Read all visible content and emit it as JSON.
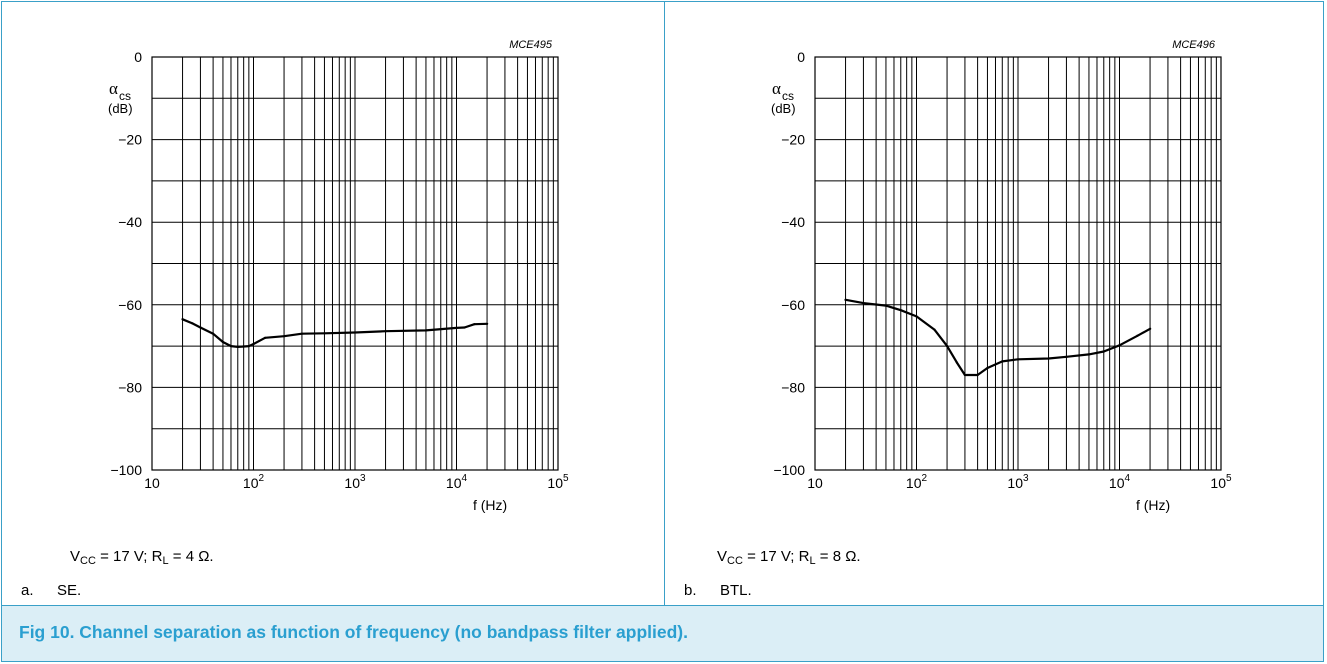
{
  "caption": "Fig 10.  Channel separation as function of frequency (no bandpass filter applied).",
  "colors": {
    "frame": "#3aa0c8",
    "caption_bg": "#dbeef6",
    "caption_text": "#2a9fd0",
    "curve": "#000000",
    "grid": "#000000"
  },
  "chart_data": [
    {
      "type": "line",
      "title": "MCE495",
      "ylabel_symbol": "α",
      "ylabel_sub": "cs",
      "ylabel_unit": "(dB)",
      "xlabel": "f (Hz)",
      "xscale": "log",
      "xlim": [
        10,
        100000
      ],
      "ylim": [
        -100,
        0
      ],
      "grid": true,
      "yticks": [
        0,
        -20,
        -40,
        -60,
        -80,
        -100
      ],
      "ytick_labels": [
        "0",
        "−20",
        "−40",
        "−60",
        "−80",
        "−100"
      ],
      "xtick_labels": [
        {
          "base": "10",
          "exp": ""
        },
        {
          "base": "10",
          "exp": "2"
        },
        {
          "base": "10",
          "exp": "3"
        },
        {
          "base": "10",
          "exp": "4"
        },
        {
          "base": "10",
          "exp": "5"
        }
      ],
      "series": [
        {
          "x": [
            20,
            25,
            30,
            40,
            50,
            60,
            70,
            80,
            90,
            100,
            130,
            200,
            300,
            500,
            1000,
            2000,
            5000,
            10000,
            12000,
            15000,
            20000
          ],
          "y": [
            -63.5,
            -64.5,
            -65.5,
            -67,
            -69,
            -70,
            -70.2,
            -70.1,
            -70,
            -69.5,
            -68,
            -67.6,
            -67,
            -66.9,
            -66.7,
            -66.4,
            -66.2,
            -65.6,
            -65.5,
            -64.7,
            -64.6
          ]
        }
      ],
      "condition": {
        "v_sym": "V",
        "v_sub": "CC",
        "v_val": " = 17 V; ",
        "r_sym": "R",
        "r_sub": "L",
        "r_val": " = 4 Ω."
      },
      "sublabel": {
        "tag": "a.",
        "text": "SE."
      }
    },
    {
      "type": "line",
      "title": "MCE496",
      "ylabel_symbol": "α",
      "ylabel_sub": "cs",
      "ylabel_unit": "(dB)",
      "xlabel": "f (Hz)",
      "xscale": "log",
      "xlim": [
        10,
        100000
      ],
      "ylim": [
        -100,
        0
      ],
      "grid": true,
      "yticks": [
        0,
        -20,
        -40,
        -60,
        -80,
        -100
      ],
      "ytick_labels": [
        "0",
        "−20",
        "−40",
        "−60",
        "−80",
        "−100"
      ],
      "xtick_labels": [
        {
          "base": "10",
          "exp": ""
        },
        {
          "base": "10",
          "exp": "2"
        },
        {
          "base": "10",
          "exp": "3"
        },
        {
          "base": "10",
          "exp": "4"
        },
        {
          "base": "10",
          "exp": "5"
        }
      ],
      "series": [
        {
          "x": [
            20,
            30,
            50,
            70,
            100,
            150,
            200,
            250,
            300,
            400,
            500,
            700,
            1000,
            2000,
            3000,
            5000,
            7000,
            10000,
            15000,
            20000
          ],
          "y": [
            -58.8,
            -59.6,
            -60.2,
            -61.3,
            -62.8,
            -66,
            -70,
            -74,
            -77,
            -77,
            -75.3,
            -73.7,
            -73.2,
            -73,
            -72.6,
            -72,
            -71.3,
            -69.8,
            -67.5,
            -65.8
          ]
        }
      ],
      "condition": {
        "v_sym": "V",
        "v_sub": "CC",
        "v_val": " = 17 V; ",
        "r_sym": "R",
        "r_sub": "L",
        "r_val": " = 8 Ω."
      },
      "sublabel": {
        "tag": "b.",
        "text": "BTL."
      }
    }
  ]
}
